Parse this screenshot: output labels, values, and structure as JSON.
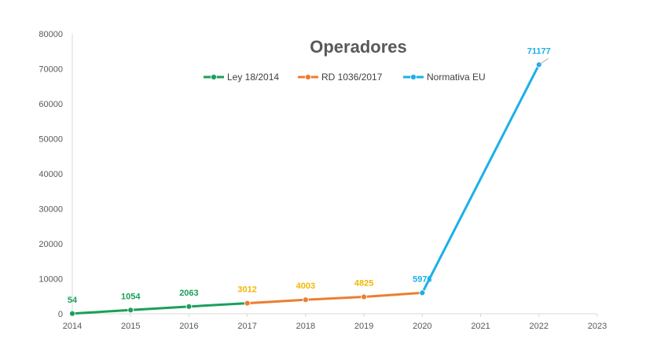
{
  "chart_data": {
    "type": "line",
    "title": "Operadores",
    "xlabel": "",
    "ylabel": "",
    "x_ticks": [
      "2014",
      "2015",
      "2016",
      "2017",
      "2018",
      "2019",
      "2020",
      "2021",
      "2022",
      "2023"
    ],
    "y_ticks": [
      "0",
      "10000",
      "20000",
      "30000",
      "40000",
      "50000",
      "60000",
      "70000",
      "80000"
    ],
    "xlim": [
      2014,
      2023
    ],
    "ylim": [
      0,
      80000
    ],
    "grid": false,
    "legend_position": "top",
    "series": [
      {
        "name": "Ley 18/2014",
        "color": "#1aa05a",
        "x": [
          2014,
          2015,
          2016,
          2017
        ],
        "y": [
          54,
          1054,
          2063,
          3012
        ],
        "labels": [
          "54",
          "1054",
          "2063",
          ""
        ]
      },
      {
        "name": "RD 1036/2017",
        "color": "#ed7d31",
        "x": [
          2017,
          2018,
          2019,
          2020
        ],
        "y": [
          3012,
          4003,
          4825,
          5976
        ],
        "labels": [
          "3012",
          "4003",
          "4825",
          ""
        ]
      },
      {
        "name": "Normativa EU",
        "color": "#1ab0e8",
        "x": [
          2020,
          2022
        ],
        "y": [
          5976,
          71177
        ],
        "labels": [
          "5976",
          "71177"
        ]
      }
    ],
    "label_colors": {
      "Ley 18/2014": "#1aa05a",
      "RD 1036/2017": "#f2b700",
      "Normativa EU": "#1ab0e8"
    }
  }
}
